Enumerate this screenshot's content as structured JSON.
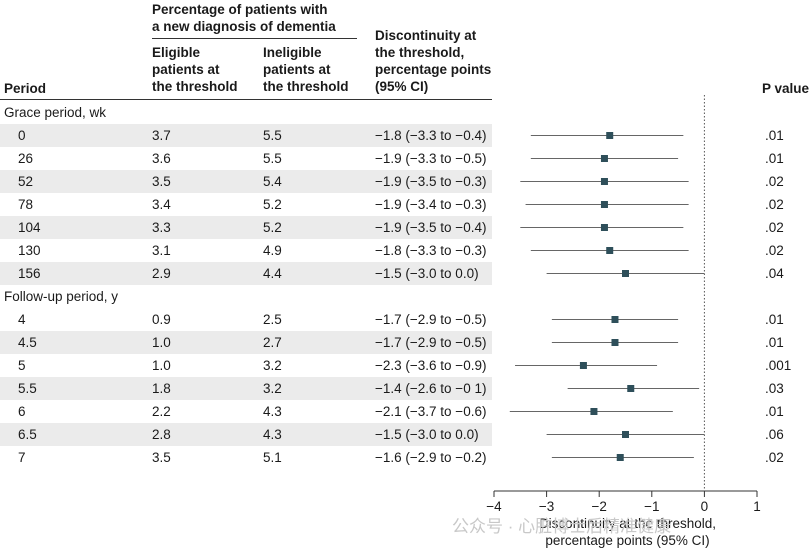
{
  "table": {
    "headers": {
      "period": "Period",
      "group_title": "Percentage of patients with\na new diagnosis of dementia",
      "eligible": "Eligible\npatients at\nthe threshold",
      "ineligible": "Ineligible\npatients at\nthe threshold",
      "discontinuity": "Discontinuity at\nthe threshold,\npercentage points\n(95% CI)",
      "pvalue": "P value"
    },
    "sections": [
      {
        "label": "Grace period, wk",
        "rows": [
          {
            "period": "0",
            "eligible": "3.7",
            "ineligible": "5.5",
            "disc": "−1.8 (−3.3 to −0.4)",
            "p": ".01"
          },
          {
            "period": "26",
            "eligible": "3.6",
            "ineligible": "5.5",
            "disc": "−1.9 (−3.3 to −0.5)",
            "p": ".01"
          },
          {
            "period": "52",
            "eligible": "3.5",
            "ineligible": "5.4",
            "disc": "−1.9 (−3.5 to −0.3)",
            "p": ".02"
          },
          {
            "period": "78",
            "eligible": "3.4",
            "ineligible": "5.2",
            "disc": "−1.9 (−3.4 to −0.3)",
            "p": ".02"
          },
          {
            "period": "104",
            "eligible": "3.3",
            "ineligible": "5.2",
            "disc": "−1.9 (−3.5 to −0.4)",
            "p": ".02"
          },
          {
            "period": "130",
            "eligible": "3.1",
            "ineligible": "4.9",
            "disc": "−1.8 (−3.3 to −0.3)",
            "p": ".02"
          },
          {
            "period": "156",
            "eligible": "2.9",
            "ineligible": "4.4",
            "disc": "−1.5 (−3.0 to 0.0)",
            "p": ".04"
          }
        ]
      },
      {
        "label": "Follow-up period, y",
        "rows": [
          {
            "period": "4",
            "eligible": "0.9",
            "ineligible": "2.5",
            "disc": "−1.7 (−2.9 to −0.5)",
            "p": ".01"
          },
          {
            "period": "4.5",
            "eligible": "1.0",
            "ineligible": "2.7",
            "disc": "−1.7 (−2.9 to −0.5)",
            "p": ".01"
          },
          {
            "period": "5",
            "eligible": "1.0",
            "ineligible": "3.2",
            "disc": "−2.3 (−3.6 to −0.9)",
            "p": ".001"
          },
          {
            "period": "5.5",
            "eligible": "1.8",
            "ineligible": "3.2",
            "disc": "−1.4 (−2.6 to −0 1)",
            "p": ".03"
          },
          {
            "period": "6",
            "eligible": "2.2",
            "ineligible": "4.3",
            "disc": "−2.1 (−3.7 to −0.6)",
            "p": ".01"
          },
          {
            "period": "6.5",
            "eligible": "2.8",
            "ineligible": "4.3",
            "disc": "−1.5 (−3.0 to 0.0)",
            "p": ".06"
          },
          {
            "period": "7",
            "eligible": "3.5",
            "ineligible": "5.1",
            "disc": "−1.6 (−2.9 to −0.2)",
            "p": ".02"
          }
        ]
      }
    ]
  },
  "chart_data": {
    "type": "scatter",
    "subtype": "forest-plot",
    "xlabel": "Discontinuity at the threshold,\npercentage points (95% CI)",
    "xlim": [
      -4,
      1
    ],
    "xticks": [
      "−4",
      "−3",
      "−2",
      "−1",
      "0",
      "1"
    ],
    "reference_line": 0,
    "marker_color": "#2e4f5a",
    "ci_color": "#666666",
    "points": [
      {
        "est": -1.8,
        "lo": -3.3,
        "hi": -0.4
      },
      {
        "est": -1.9,
        "lo": -3.3,
        "hi": -0.5
      },
      {
        "est": -1.9,
        "lo": -3.5,
        "hi": -0.3
      },
      {
        "est": -1.9,
        "lo": -3.4,
        "hi": -0.3
      },
      {
        "est": -1.9,
        "lo": -3.5,
        "hi": -0.4
      },
      {
        "est": -1.8,
        "lo": -3.3,
        "hi": -0.3
      },
      {
        "est": -1.5,
        "lo": -3.0,
        "hi": 0.0
      },
      {
        "est": -1.7,
        "lo": -2.9,
        "hi": -0.5
      },
      {
        "est": -1.7,
        "lo": -2.9,
        "hi": -0.5
      },
      {
        "est": -2.3,
        "lo": -3.6,
        "hi": -0.9
      },
      {
        "est": -1.4,
        "lo": -2.6,
        "hi": -0.1
      },
      {
        "est": -2.1,
        "lo": -3.7,
        "hi": -0.6
      },
      {
        "est": -1.5,
        "lo": -3.0,
        "hi": 0.0
      },
      {
        "est": -1.6,
        "lo": -2.9,
        "hi": -0.2
      }
    ]
  },
  "watermark": "公众号 · 心脏博士后精准健康"
}
